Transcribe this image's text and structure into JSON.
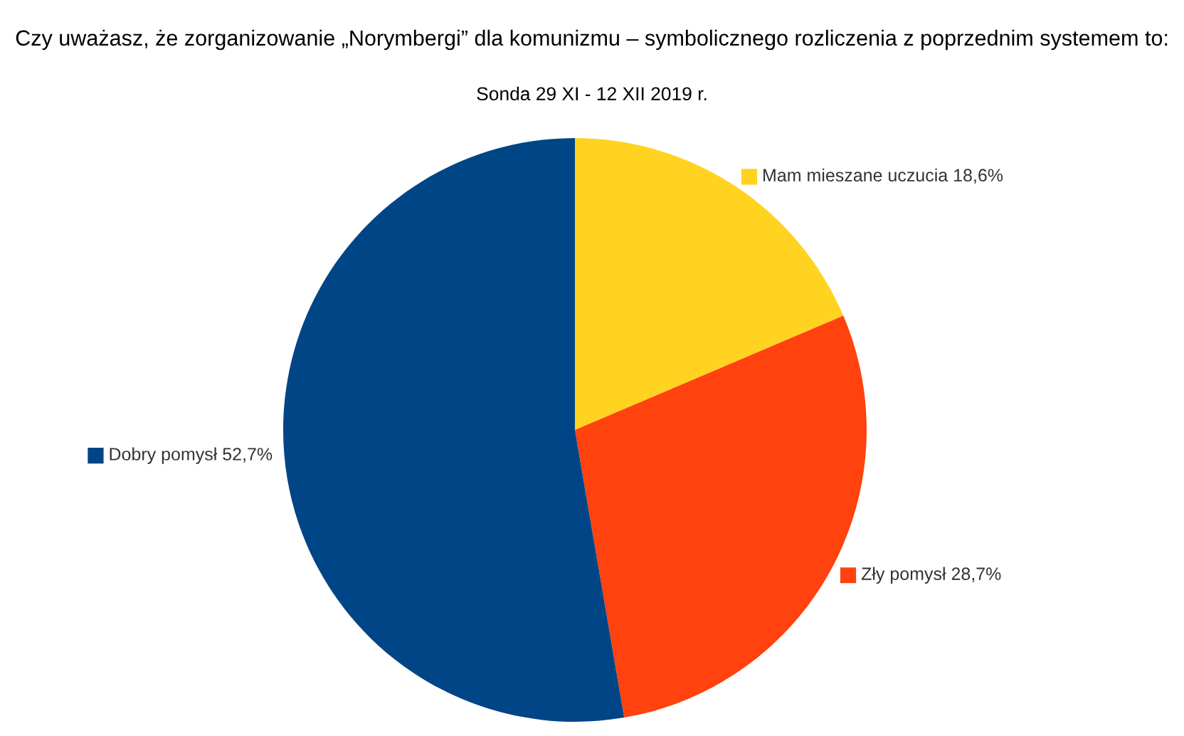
{
  "chart_data": {
    "type": "pie",
    "title": "Czy uważasz, że zorganizowanie „Norymbergi” dla komunizmu – symbolicznego rozliczenia z poprzednim systemem to:",
    "subtitle": "Sonda 29 XI - 12 XII 2019 r.",
    "categories": [
      "Mam mieszane uczucia",
      "Zły pomysł",
      "Dobry pomysł"
    ],
    "values": [
      18.6,
      28.7,
      52.7
    ],
    "value_labels": [
      "18,6%",
      "28,7%",
      "52,7%"
    ],
    "colors": [
      "#ffd320",
      "#ff420e",
      "#004586"
    ],
    "legend": "top left"
  }
}
